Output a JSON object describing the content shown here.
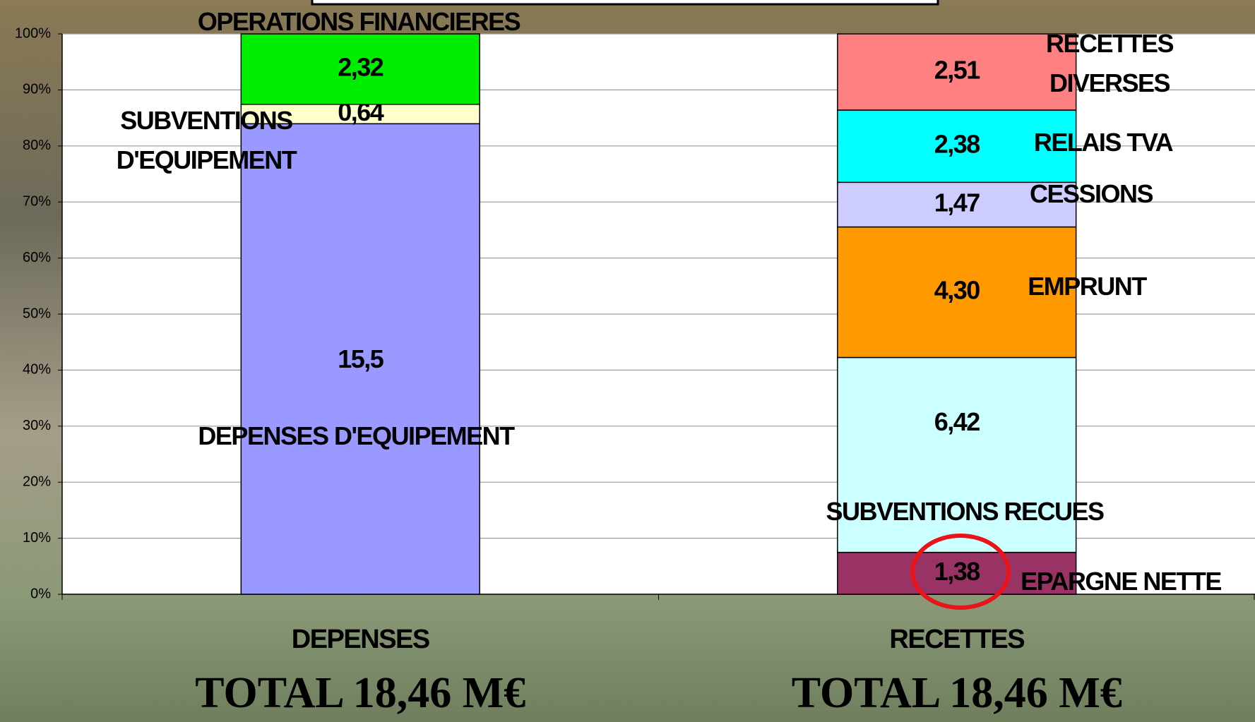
{
  "chart_data": {
    "type": "stacked_bar",
    "stacking": "percent",
    "categories": [
      "DEPENSES",
      "RECETTES"
    ],
    "totals": [
      "TOTAL 18,46 M€",
      "TOTAL 18,46 M€"
    ],
    "series": [
      {
        "name": "DEPENSES D'EQUIPEMENT",
        "color": "#9999ff",
        "values": [
          15.5,
          null
        ],
        "value_labels": [
          "15,5",
          null
        ]
      },
      {
        "name": "SUBVENTIONS D'EQUIPEMENT",
        "color": "#ffffcc",
        "values": [
          0.64,
          null
        ],
        "value_labels": [
          "0,64",
          null
        ]
      },
      {
        "name": "OPERATIONS FINANCIERES",
        "color": "#00ee00",
        "values": [
          2.32,
          null
        ],
        "value_labels": [
          "2,32",
          null
        ]
      },
      {
        "name": "EPARGNE NETTE",
        "color": "#993366",
        "values": [
          null,
          1.38
        ],
        "value_labels": [
          null,
          "1,38"
        ]
      },
      {
        "name": "SUBVENTIONS RECUES",
        "color": "#ccffff",
        "values": [
          null,
          6.42
        ],
        "value_labels": [
          null,
          "6,42"
        ]
      },
      {
        "name": "EMPRUNT",
        "color": "#ff9900",
        "values": [
          null,
          4.3
        ],
        "value_labels": [
          null,
          "4,30"
        ]
      },
      {
        "name": "CESSIONS",
        "color": "#ccccff",
        "values": [
          null,
          1.47
        ],
        "value_labels": [
          null,
          "1,47"
        ]
      },
      {
        "name": "RELAIS TVA",
        "color": "#00ffff",
        "values": [
          null,
          2.38
        ],
        "value_labels": [
          null,
          "2,38"
        ]
      },
      {
        "name": "RECETTES DIVERSES",
        "color": "#ff8080",
        "values": [
          null,
          2.51
        ],
        "value_labels": [
          null,
          "2,51"
        ]
      }
    ],
    "ylim": [
      0,
      100
    ],
    "yticks": [
      {
        "value": 0,
        "label": "0%"
      },
      {
        "value": 10,
        "label": "10%"
      },
      {
        "value": 20,
        "label": "20%"
      },
      {
        "value": 30,
        "label": "30%"
      },
      {
        "value": 40,
        "label": "40%"
      },
      {
        "value": 50,
        "label": "50%"
      },
      {
        "value": 60,
        "label": "60%"
      },
      {
        "value": 70,
        "label": "70%"
      },
      {
        "value": 80,
        "label": "80%"
      },
      {
        "value": 90,
        "label": "90%"
      },
      {
        "value": 100,
        "label": "100%"
      }
    ],
    "grid": true
  }
}
